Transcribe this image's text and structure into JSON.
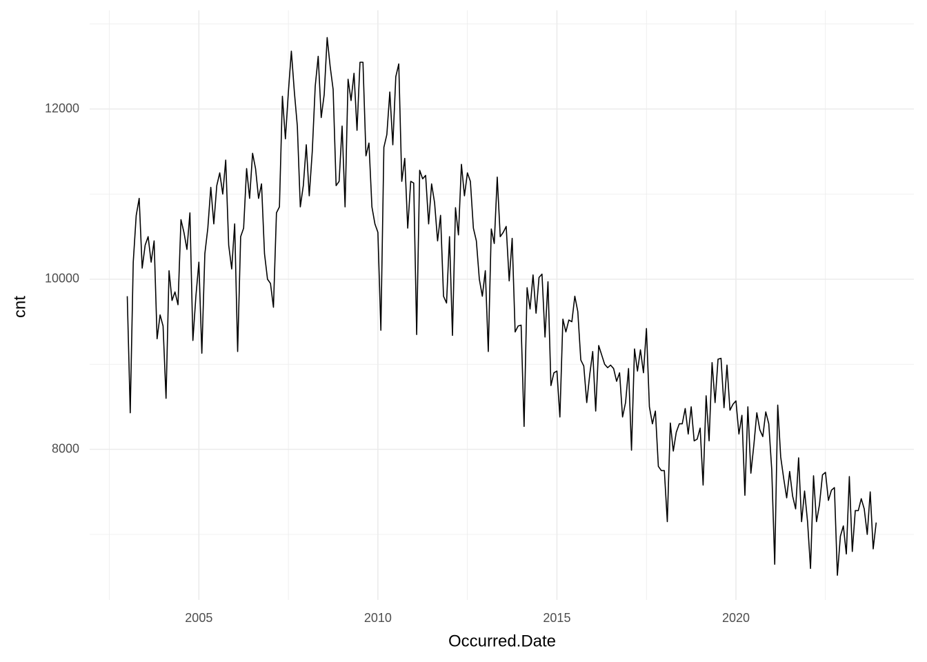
{
  "chart_data": {
    "type": "line",
    "xlabel": "Occurred.Date",
    "ylabel": "cnt",
    "color": "#000000",
    "grid": true,
    "xlim": [
      2001.95,
      2024.97
    ],
    "xticks": [
      2005,
      2010,
      2015,
      2020
    ],
    "xminor": [
      2002.5,
      2007.5,
      2012.5,
      2017.5,
      2022.5
    ],
    "ylim": [
      6230,
      13160
    ],
    "yticks": [
      8000,
      10000,
      12000
    ],
    "yminor": [
      7000,
      9000,
      11000,
      13000
    ],
    "x": [
      2003,
      2003.083,
      2003.167,
      2003.25,
      2003.333,
      2003.417,
      2003.5,
      2003.583,
      2003.667,
      2003.75,
      2003.833,
      2003.917,
      2004,
      2004.083,
      2004.167,
      2004.25,
      2004.333,
      2004.417,
      2004.5,
      2004.583,
      2004.667,
      2004.75,
      2004.833,
      2004.917,
      2005,
      2005.083,
      2005.167,
      2005.25,
      2005.333,
      2005.417,
      2005.5,
      2005.583,
      2005.667,
      2005.75,
      2005.833,
      2005.917,
      2006,
      2006.083,
      2006.167,
      2006.25,
      2006.333,
      2006.417,
      2006.5,
      2006.583,
      2006.667,
      2006.75,
      2006.833,
      2006.917,
      2007,
      2007.083,
      2007.167,
      2007.25,
      2007.333,
      2007.417,
      2007.5,
      2007.583,
      2007.667,
      2007.75,
      2007.833,
      2007.917,
      2008,
      2008.083,
      2008.167,
      2008.25,
      2008.333,
      2008.417,
      2008.5,
      2008.583,
      2008.667,
      2008.75,
      2008.833,
      2008.917,
      2009,
      2009.083,
      2009.167,
      2009.25,
      2009.333,
      2009.417,
      2009.5,
      2009.583,
      2009.667,
      2009.75,
      2009.833,
      2009.917,
      2010,
      2010.083,
      2010.167,
      2010.25,
      2010.333,
      2010.417,
      2010.5,
      2010.583,
      2010.667,
      2010.75,
      2010.833,
      2010.917,
      2011,
      2011.083,
      2011.167,
      2011.25,
      2011.333,
      2011.417,
      2011.5,
      2011.583,
      2011.667,
      2011.75,
      2011.833,
      2011.917,
      2012,
      2012.083,
      2012.167,
      2012.25,
      2012.333,
      2012.417,
      2012.5,
      2012.583,
      2012.667,
      2012.75,
      2012.833,
      2012.917,
      2013,
      2013.083,
      2013.167,
      2013.25,
      2013.333,
      2013.417,
      2013.5,
      2013.583,
      2013.667,
      2013.75,
      2013.833,
      2013.917,
      2014,
      2014.083,
      2014.167,
      2014.25,
      2014.333,
      2014.417,
      2014.5,
      2014.583,
      2014.667,
      2014.75,
      2014.833,
      2014.917,
      2015,
      2015.083,
      2015.167,
      2015.25,
      2015.333,
      2015.417,
      2015.5,
      2015.583,
      2015.667,
      2015.75,
      2015.833,
      2015.917,
      2016,
      2016.083,
      2016.167,
      2016.25,
      2016.333,
      2016.417,
      2016.5,
      2016.583,
      2016.667,
      2016.75,
      2016.833,
      2016.917,
      2017,
      2017.083,
      2017.167,
      2017.25,
      2017.333,
      2017.417,
      2017.5,
      2017.583,
      2017.667,
      2017.75,
      2017.833,
      2017.917,
      2018,
      2018.083,
      2018.167,
      2018.25,
      2018.333,
      2018.417,
      2018.5,
      2018.583,
      2018.667,
      2018.75,
      2018.833,
      2018.917,
      2019,
      2019.083,
      2019.167,
      2019.25,
      2019.333,
      2019.417,
      2019.5,
      2019.583,
      2019.667,
      2019.75,
      2019.833,
      2019.917,
      2020,
      2020.083,
      2020.167,
      2020.25,
      2020.333,
      2020.417,
      2020.5,
      2020.583,
      2020.667,
      2020.75,
      2020.833,
      2020.917,
      2021,
      2021.083,
      2021.167,
      2021.25,
      2021.333,
      2021.417,
      2021.5,
      2021.583,
      2021.667,
      2021.75,
      2021.833,
      2021.917,
      2022,
      2022.083,
      2022.167,
      2022.25,
      2022.333,
      2022.417,
      2022.5,
      2022.583,
      2022.667,
      2022.75,
      2022.833,
      2022.917,
      2023,
      2023.083,
      2023.167,
      2023.25,
      2023.333,
      2023.417,
      2023.5,
      2023.583,
      2023.667,
      2023.75,
      2023.833,
      2023.917
    ],
    "values": [
      9800,
      8430,
      10200,
      10750,
      10950,
      10130,
      10400,
      10500,
      10200,
      10450,
      9300,
      9580,
      9450,
      8600,
      10100,
      9750,
      9850,
      9700,
      10700,
      10550,
      10350,
      10780,
      9280,
      9800,
      10200,
      9130,
      10300,
      10600,
      11080,
      10650,
      11100,
      11250,
      11000,
      11400,
      10400,
      10120,
      10650,
      9150,
      10500,
      10600,
      11300,
      10950,
      11480,
      11300,
      10950,
      11120,
      10300,
      10000,
      9950,
      9670,
      10780,
      10850,
      12150,
      11650,
      12200,
      12680,
      12200,
      11800,
      10850,
      11100,
      11580,
      10980,
      11500,
      12270,
      12620,
      11900,
      12170,
      12840,
      12500,
      12230,
      11100,
      11150,
      11800,
      10850,
      12350,
      12100,
      12420,
      11750,
      12550,
      12550,
      11450,
      11600,
      10850,
      10650,
      10550,
      9400,
      11550,
      11700,
      12200,
      11580,
      12380,
      12530,
      11150,
      11420,
      10600,
      11150,
      11130,
      9350,
      11280,
      11180,
      11220,
      10650,
      11120,
      10900,
      10450,
      10750,
      9800,
      9720,
      10500,
      9340,
      10840,
      10520,
      11350,
      10980,
      11250,
      11150,
      10600,
      10450,
      10000,
      9800,
      10100,
      9150,
      10590,
      10420,
      11200,
      10500,
      10550,
      10620,
      9980,
      10480,
      9380,
      9450,
      9460,
      8270,
      9900,
      9650,
      10050,
      9600,
      10020,
      10060,
      9320,
      9970,
      8750,
      8900,
      8920,
      8380,
      9530,
      9380,
      9520,
      9500,
      9800,
      9620,
      9050,
      8980,
      8550,
      8880,
      9150,
      8450,
      9220,
      9110,
      9000,
      8960,
      8990,
      8950,
      8800,
      8900,
      8380,
      8550,
      8950,
      7990,
      9180,
      8920,
      9170,
      8900,
      9420,
      8500,
      8300,
      8450,
      7800,
      7750,
      7750,
      7150,
      8310,
      7980,
      8200,
      8300,
      8300,
      8480,
      8180,
      8500,
      8100,
      8120,
      8250,
      7580,
      8630,
      8100,
      9020,
      8550,
      9060,
      9070,
      8490,
      8990,
      8460,
      8530,
      8570,
      8180,
      8400,
      7460,
      8500,
      7720,
      8050,
      8430,
      8230,
      8150,
      8440,
      8300,
      7760,
      6650,
      8520,
      7910,
      7660,
      7430,
      7740,
      7450,
      7300,
      7900,
      7150,
      7510,
      7150,
      6600,
      7690,
      7150,
      7350,
      7700,
      7730,
      7400,
      7520,
      7550,
      6520,
      6980,
      7100,
      6770,
      7680,
      6800,
      7280,
      7280,
      7420,
      7300,
      7000,
      7500,
      6830,
      7140
    ]
  }
}
